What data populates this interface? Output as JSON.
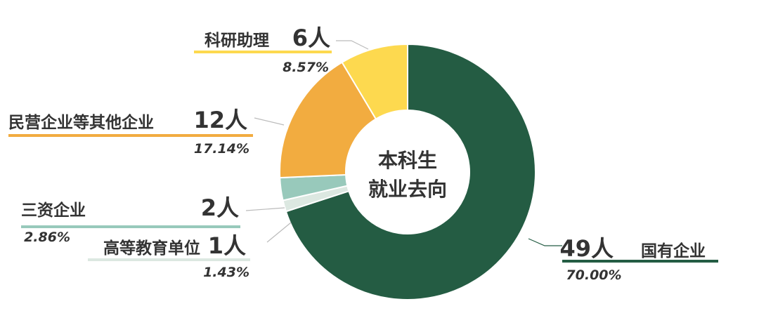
{
  "chart_data": {
    "type": "pie",
    "title": "本科生\n就业去向",
    "unit": "人",
    "slices": [
      {
        "name": "国有企业",
        "count": 49,
        "count_label": "49人",
        "percent_label": "70.00%",
        "color": "#245c43"
      },
      {
        "name": "高等教育单位",
        "count": 1,
        "count_label": "1人",
        "percent_label": "1.43%",
        "color": "#dce8e1"
      },
      {
        "name": "三资企业",
        "count": 2,
        "count_label": "2人",
        "percent_label": "2.86%",
        "color": "#98c9bb"
      },
      {
        "name": "民营企业等其他企业",
        "count": 12,
        "count_label": "12人",
        "percent_label": "17.14%",
        "color": "#f2ac40"
      },
      {
        "name": "科研助理",
        "count": 6,
        "count_label": "6人",
        "percent_label": "8.57%",
        "color": "#fdd94f"
      }
    ]
  }
}
